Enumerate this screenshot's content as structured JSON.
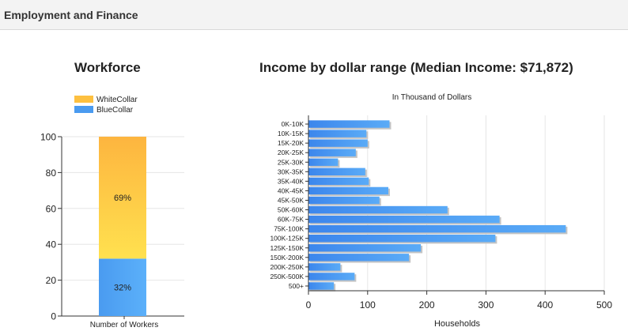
{
  "header": {
    "title": "Employment and Finance"
  },
  "colors": {
    "white_collar": "#FDC040",
    "blue_collar": "#4A9BF0",
    "income_bar": "#4593EE"
  },
  "workforce": {
    "title": "Workforce",
    "chart_data": {
      "type": "bar",
      "stacked": true,
      "categories": [
        "Number of Workers"
      ],
      "series": [
        {
          "name": "WhiteCollar",
          "values": [
            69
          ],
          "label": "69%"
        },
        {
          "name": "BlueCollar",
          "values": [
            32
          ],
          "label": "32%"
        }
      ],
      "ylim": [
        0,
        100
      ],
      "yticks": [
        "0",
        "20",
        "40",
        "60",
        "80",
        "100"
      ],
      "legend": "top-left",
      "grid": true
    }
  },
  "income": {
    "title": "Income by dollar range (Median Income: $71,872)",
    "chart_data": {
      "type": "bar",
      "orientation": "horizontal",
      "subtitle": "In Thousand of Dollars",
      "xlabel": "Households",
      "categories": [
        "0K-10K",
        "10K-15K",
        "15K-20K",
        "20K-25K",
        "25K-30K",
        "30K-35K",
        "35K-40K",
        "40K-45K",
        "45K-50K",
        "50K-60K",
        "60K-75K",
        "75K-100K",
        "100K-125K",
        "125K-150K",
        "150K-200K",
        "200K-250K",
        "250K-500K",
        "500+"
      ],
      "values": [
        137,
        98,
        100,
        80,
        50,
        96,
        102,
        135,
        120,
        235,
        323,
        435,
        316,
        190,
        170,
        54,
        78,
        43
      ],
      "xlim": [
        0,
        500
      ],
      "xticks": [
        "0",
        "100",
        "200",
        "300",
        "400",
        "500"
      ],
      "grid": true
    }
  }
}
